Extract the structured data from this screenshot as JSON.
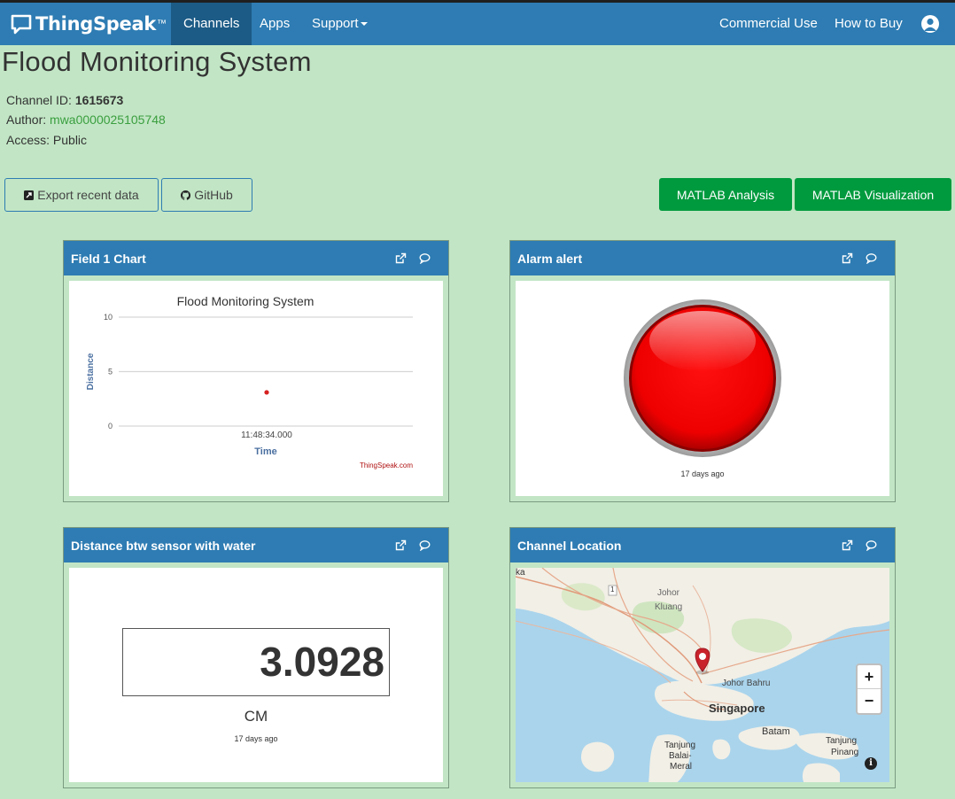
{
  "nav": {
    "brand": "ThingSpeak",
    "brand_tm": "™",
    "items": [
      {
        "label": "Channels",
        "active": true
      },
      {
        "label": "Apps"
      },
      {
        "label": "Support"
      }
    ],
    "right_items": [
      "Commercial Use",
      "How to Buy"
    ]
  },
  "channel": {
    "title": "Flood Monitoring System",
    "id_label": "Channel ID: ",
    "id_value": "1615673",
    "author_label": "Author: ",
    "author_value": "mwa0000025105748",
    "access_label": "Access: ",
    "access_value": "Public"
  },
  "buttons": {
    "export": "Export recent data",
    "github": "GitHub",
    "matlab_analysis": "MATLAB Analysis",
    "matlab_visualization": "MATLAB Visualization"
  },
  "panels": {
    "field1": {
      "title": "Field 1 Chart"
    },
    "alarm": {
      "title": "Alarm alert",
      "time": "17 days ago",
      "color": "#ff0000"
    },
    "distance": {
      "title": "Distance btw sensor with water",
      "value": "3.0928",
      "unit": "CM",
      "time": "17 days ago"
    },
    "location": {
      "title": "Channel Location"
    }
  },
  "chart_data": {
    "type": "scatter",
    "title": "Flood Monitoring System",
    "xlabel": "Time",
    "ylabel": "Distance",
    "x": [
      "11:48:34.000"
    ],
    "y": [
      3.0928
    ],
    "ylim": [
      0,
      10
    ],
    "yticks": [
      0,
      5,
      10
    ],
    "grid": true,
    "credit": "ThingSpeak.com",
    "point_color": "#d62020"
  },
  "map": {
    "labels": [
      "ka",
      "1",
      "Johor",
      "Kluang",
      "Johor Bahru",
      "Singapore",
      "Batam",
      "Tanjung",
      "Balai-",
      "Meral",
      "Tanjung",
      "Pinang"
    ],
    "zoom_in": "+",
    "zoom_out": "−",
    "info": "i"
  },
  "colors": {
    "navbar": "#2e7cb3",
    "background": "#c2e6c5",
    "green_button": "#009a3e"
  }
}
